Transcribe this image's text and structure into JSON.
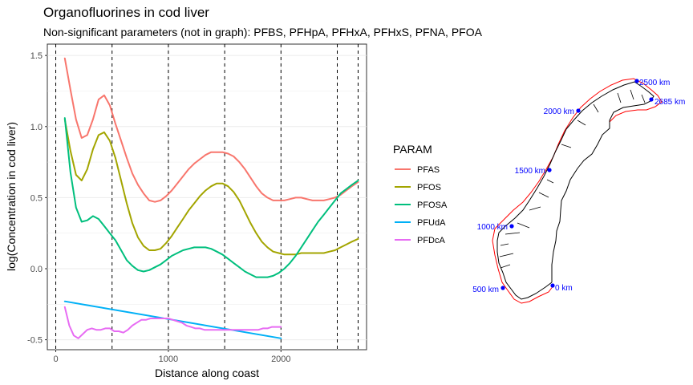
{
  "title": "Organofluorines in cod liver",
  "subtitle": "Non-significant parameters (not in graph): PFBS, PFHpA, PFHxA, PFHxS, PFNA, PFOA",
  "chart_data": {
    "type": "line",
    "xlabel": "Distance along coast",
    "ylabel": "log(Concentration in cod liver)",
    "xlim": [
      -75,
      2760
    ],
    "ylim": [
      -0.57,
      1.58
    ],
    "x_ticks": [
      0,
      1000,
      2000
    ],
    "y_ticks": [
      -0.5,
      0.0,
      0.5,
      1.0,
      1.5
    ],
    "y_tick_labels": [
      "-0.5",
      "0.0",
      "0.5",
      "1.0",
      "1.5"
    ],
    "vlines": [
      0,
      500,
      1000,
      1500,
      2000,
      2500,
      2685
    ],
    "grid": true,
    "legend": {
      "title": "PARAM",
      "placement": "right"
    },
    "series": [
      {
        "name": "PFAS",
        "color": "#F8766D",
        "x": [
          80,
          130,
          180,
          230,
          280,
          330,
          380,
          430,
          480,
          530,
          580,
          630,
          680,
          730,
          780,
          830,
          880,
          930,
          980,
          1030,
          1080,
          1130,
          1180,
          1230,
          1280,
          1330,
          1380,
          1430,
          1480,
          1530,
          1580,
          1630,
          1680,
          1730,
          1780,
          1830,
          1880,
          1930,
          1980,
          2030,
          2080,
          2130,
          2180,
          2230,
          2280,
          2330,
          2380,
          2430,
          2480,
          2530,
          2580,
          2630,
          2685
        ],
        "y": [
          1.48,
          1.26,
          1.05,
          0.92,
          0.94,
          1.05,
          1.19,
          1.22,
          1.15,
          1.02,
          0.9,
          0.78,
          0.67,
          0.59,
          0.53,
          0.48,
          0.47,
          0.48,
          0.51,
          0.55,
          0.6,
          0.65,
          0.7,
          0.74,
          0.77,
          0.8,
          0.82,
          0.82,
          0.82,
          0.81,
          0.79,
          0.75,
          0.7,
          0.64,
          0.58,
          0.53,
          0.5,
          0.48,
          0.48,
          0.48,
          0.49,
          0.5,
          0.5,
          0.49,
          0.48,
          0.48,
          0.48,
          0.49,
          0.5,
          0.52,
          0.55,
          0.58,
          0.61
        ]
      },
      {
        "name": "PFOS",
        "color": "#A3A500",
        "x": [
          80,
          130,
          180,
          230,
          280,
          330,
          380,
          430,
          480,
          530,
          580,
          630,
          680,
          730,
          780,
          830,
          880,
          930,
          980,
          1030,
          1080,
          1130,
          1180,
          1230,
          1280,
          1330,
          1380,
          1430,
          1480,
          1530,
          1580,
          1630,
          1680,
          1730,
          1780,
          1830,
          1880,
          1930,
          1980,
          2030,
          2080,
          2130,
          2180,
          2230,
          2280,
          2330,
          2380,
          2430,
          2480,
          2530,
          2580,
          2630,
          2685
        ],
        "y": [
          1.05,
          0.83,
          0.66,
          0.62,
          0.7,
          0.84,
          0.94,
          0.96,
          0.9,
          0.78,
          0.62,
          0.46,
          0.32,
          0.22,
          0.16,
          0.13,
          0.13,
          0.14,
          0.18,
          0.23,
          0.29,
          0.35,
          0.41,
          0.46,
          0.51,
          0.55,
          0.58,
          0.6,
          0.6,
          0.58,
          0.54,
          0.48,
          0.4,
          0.32,
          0.25,
          0.19,
          0.15,
          0.12,
          0.11,
          0.1,
          0.1,
          0.1,
          0.11,
          0.11,
          0.11,
          0.11,
          0.11,
          0.12,
          0.13,
          0.15,
          0.17,
          0.19,
          0.21
        ]
      },
      {
        "name": "PFOSA",
        "color": "#00BF7D",
        "x": [
          80,
          130,
          180,
          230,
          280,
          330,
          380,
          430,
          480,
          530,
          580,
          630,
          680,
          730,
          780,
          830,
          880,
          930,
          980,
          1030,
          1080,
          1130,
          1180,
          1230,
          1280,
          1330,
          1380,
          1430,
          1480,
          1530,
          1580,
          1630,
          1680,
          1730,
          1780,
          1830,
          1880,
          1930,
          1980,
          2030,
          2080,
          2130,
          2180,
          2230,
          2280,
          2330,
          2380,
          2430,
          2480,
          2530,
          2580,
          2630,
          2685
        ],
        "y": [
          1.06,
          0.68,
          0.43,
          0.33,
          0.34,
          0.37,
          0.35,
          0.3,
          0.25,
          0.2,
          0.13,
          0.06,
          0.02,
          -0.01,
          -0.02,
          -0.01,
          0.01,
          0.03,
          0.06,
          0.09,
          0.11,
          0.13,
          0.14,
          0.15,
          0.15,
          0.15,
          0.14,
          0.12,
          0.1,
          0.07,
          0.04,
          0.01,
          -0.02,
          -0.04,
          -0.06,
          -0.06,
          -0.06,
          -0.05,
          -0.03,
          0.0,
          0.04,
          0.09,
          0.15,
          0.21,
          0.27,
          0.33,
          0.38,
          0.43,
          0.48,
          0.53,
          0.56,
          0.59,
          0.62
        ]
      },
      {
        "name": "PFUdA",
        "color": "#00B0F6",
        "x": [
          80,
          2000
        ],
        "y": [
          -0.23,
          -0.49
        ]
      },
      {
        "name": "PFDcA",
        "color": "#E76BF3",
        "x": [
          80,
          120,
          160,
          200,
          240,
          280,
          320,
          360,
          400,
          440,
          480,
          520,
          560,
          600,
          640,
          680,
          720,
          760,
          800,
          840,
          880,
          920,
          960,
          1000,
          1040,
          1080,
          1120,
          1160,
          1200,
          1240,
          1280,
          1320,
          1360,
          1400,
          1440,
          1480,
          1520,
          1560,
          1600,
          1640,
          1680,
          1720,
          1760,
          1800,
          1840,
          1880,
          1920,
          1960,
          2000
        ],
        "y": [
          -0.27,
          -0.4,
          -0.47,
          -0.49,
          -0.46,
          -0.43,
          -0.42,
          -0.43,
          -0.43,
          -0.42,
          -0.42,
          -0.44,
          -0.44,
          -0.45,
          -0.43,
          -0.4,
          -0.38,
          -0.36,
          -0.36,
          -0.35,
          -0.35,
          -0.35,
          -0.35,
          -0.35,
          -0.36,
          -0.37,
          -0.38,
          -0.4,
          -0.41,
          -0.42,
          -0.42,
          -0.43,
          -0.43,
          -0.43,
          -0.43,
          -0.43,
          -0.43,
          -0.43,
          -0.43,
          -0.43,
          -0.43,
          -0.43,
          -0.43,
          -0.43,
          -0.42,
          -0.42,
          -0.41,
          -0.41,
          -0.41
        ]
      }
    ]
  },
  "map": {
    "line_color": "#000000",
    "outline_color": "#FF0000",
    "marker_color": "#0000FF",
    "markers": [
      {
        "label": "0 km"
      },
      {
        "label": "500 km"
      },
      {
        "label": "1000 km"
      },
      {
        "label": "1500 km"
      },
      {
        "label": "2000 km"
      },
      {
        "label": "2500 km"
      },
      {
        "label": "2685 km"
      }
    ]
  }
}
